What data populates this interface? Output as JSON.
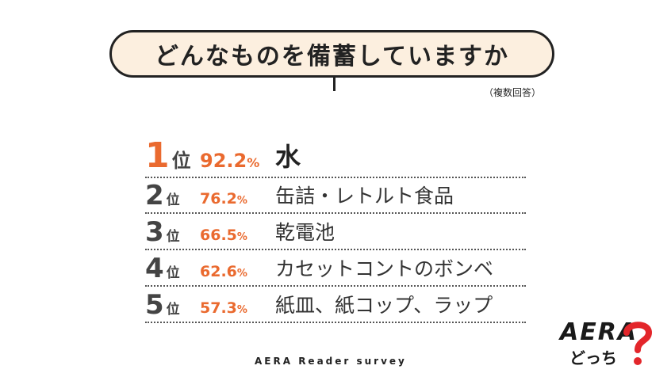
{
  "header": {
    "question": "どんなものを備蓄していますか",
    "note": "（複数回答）"
  },
  "rank_unit": "位",
  "percent_sign": "%",
  "chart_data": {
    "type": "table",
    "title": "どんなものを備蓄していますか",
    "subtitle": "（複数回答）",
    "columns": [
      "rank",
      "percent",
      "item"
    ],
    "rows": [
      {
        "rank": "1",
        "percent": "92.2",
        "item": "水"
      },
      {
        "rank": "2",
        "percent": "76.2",
        "item": "缶詰・レトルト食品"
      },
      {
        "rank": "3",
        "percent": "66.5",
        "item": "乾電池"
      },
      {
        "rank": "4",
        "percent": "62.6",
        "item": "カセットコントのボンベ"
      },
      {
        "rank": "5",
        "percent": "57.3",
        "item": "紙皿、紙コップ、ラップ"
      }
    ]
  },
  "footer": {
    "source": "AERA Reader survey"
  },
  "logo": {
    "brand": "AERA",
    "sub": "どっち",
    "accent_color": "#e3262b"
  },
  "colors": {
    "accent": "#ea6a2f",
    "bubble_fill": "#fcefdf"
  }
}
